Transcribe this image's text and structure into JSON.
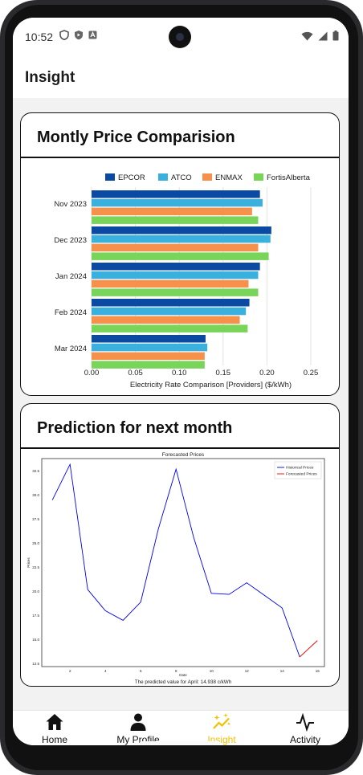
{
  "status_bar": {
    "time": "10:52"
  },
  "app_bar": {
    "title": "Insight"
  },
  "price_card": {
    "title": "Montly Price Comparision"
  },
  "prediction_card": {
    "title": "Prediction for next month"
  },
  "nav": {
    "items": [
      {
        "label": "Home",
        "icon": "home-icon"
      },
      {
        "label": "My Profile",
        "icon": "profile-icon"
      },
      {
        "label": "Insight",
        "icon": "insight-icon",
        "active": true
      },
      {
        "label": "Activity",
        "icon": "activity-icon"
      }
    ]
  },
  "colors": {
    "active": "#f2c200",
    "epcor": "#0b4aa2",
    "atco": "#3ab0de",
    "enmax": "#f6914c",
    "fortis": "#79d45a"
  },
  "chart_data": [
    {
      "type": "bar",
      "orientation": "horizontal",
      "categories": [
        "Nov 2023",
        "Dec 2023",
        "Jan 2024",
        "Feb 2024",
        "Mar 2024"
      ],
      "series": [
        {
          "name": "EPCOR",
          "color": "#0b4aa2",
          "values": [
            0.192,
            0.205,
            0.192,
            0.18,
            0.13
          ]
        },
        {
          "name": "ATCO",
          "color": "#3ab0de",
          "values": [
            0.195,
            0.204,
            0.19,
            0.176,
            0.132
          ]
        },
        {
          "name": "ENMAX",
          "color": "#f6914c",
          "values": [
            0.183,
            0.19,
            0.179,
            0.169,
            0.129
          ]
        },
        {
          "name": "FortisAlberta",
          "color": "#79d45a",
          "values": [
            0.19,
            0.202,
            0.19,
            0.178,
            0.129
          ]
        }
      ],
      "xlabel": "Electricity Rate Comparison [Providers] ($/kWh)",
      "xticks": [
        "0.00",
        "0.05",
        "0.10",
        "0.15",
        "0.20",
        "0.25"
      ],
      "xlim": [
        0,
        0.25
      ],
      "legend": "top",
      "grid": "vertical"
    },
    {
      "type": "line",
      "title": "Forecasted Prices",
      "xlabel": "Date",
      "ylabel": "Prices",
      "xlim": [
        0.4,
        16.4
      ],
      "ylim": [
        12.2,
        33.8
      ],
      "xticks": [
        "2",
        "4",
        "6",
        "8",
        "10",
        "12",
        "14",
        "16"
      ],
      "yticks": [
        "12.5",
        "15.0",
        "17.5",
        "20.0",
        "22.5",
        "25.0",
        "27.5",
        "30.0",
        "32.5"
      ],
      "series": [
        {
          "name": "Historical Prices",
          "color": "#0000ee",
          "x": [
            1,
            2,
            3,
            4,
            5,
            6,
            7,
            8,
            9,
            10,
            11,
            12,
            13,
            14,
            15
          ],
          "y": [
            29.5,
            33.2,
            20.2,
            18.0,
            17.0,
            18.9,
            26.5,
            32.7,
            25.6,
            19.8,
            19.7,
            20.9,
            19.6,
            18.3,
            13.2
          ]
        },
        {
          "name": "Forecasted Prices",
          "color": "#ee0000",
          "x": [
            15,
            16
          ],
          "y": [
            13.2,
            14.9
          ]
        }
      ],
      "legend": "top-right",
      "annotation": "The predicted value for April: 14.938 c/kWh"
    }
  ]
}
